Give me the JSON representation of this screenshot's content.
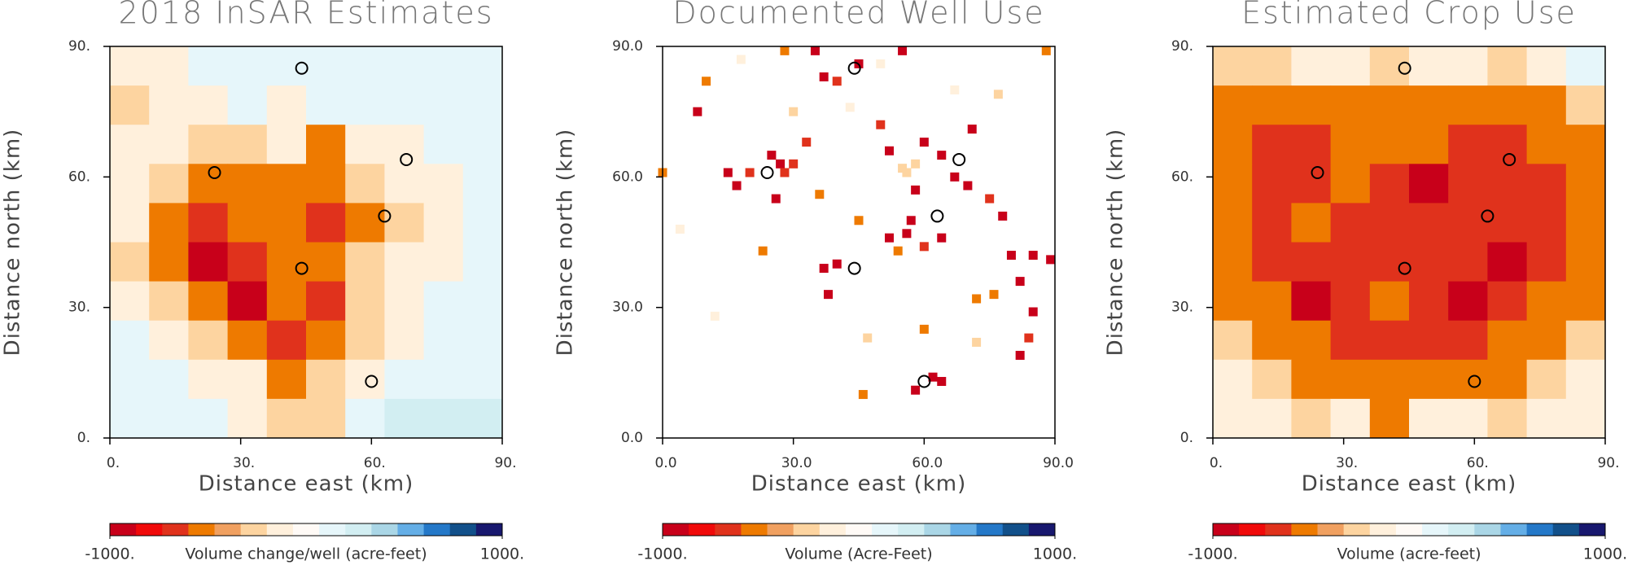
{
  "chart_data": [
    {
      "type": "heatmap",
      "title": "2018 InSAR Estimates",
      "xlabel": "Distance east (km)",
      "ylabel": "Distance north (km)",
      "xlim": [
        0,
        90
      ],
      "ylim": [
        0,
        90
      ],
      "xticks": [
        {
          "value": 0,
          "label": "0."
        },
        {
          "value": 30,
          "label": "30."
        },
        {
          "value": 60,
          "label": "60."
        },
        {
          "value": 90,
          "label": "90."
        }
      ],
      "yticks": [
        {
          "value": 0,
          "label": "0."
        },
        {
          "value": 30,
          "label": "30."
        },
        {
          "value": 60,
          "label": "60."
        },
        {
          "value": 90,
          "label": "90."
        }
      ],
      "z": [
        [
          -200,
          -200,
          130,
          130,
          130,
          130,
          130,
          130,
          130,
          130
        ],
        [
          -330,
          -200,
          -200,
          130,
          -200,
          130,
          130,
          130,
          130,
          130
        ],
        [
          -200,
          -200,
          -330,
          -330,
          -200,
          -470,
          -200,
          -200,
          130,
          130
        ],
        [
          -200,
          -330,
          -470,
          -470,
          -600,
          -470,
          -330,
          -200,
          -200,
          130
        ],
        [
          -200,
          -470,
          -730,
          -600,
          -470,
          -730,
          -470,
          -330,
          -200,
          130
        ],
        [
          -330,
          -470,
          -870,
          -730,
          -600,
          -470,
          -330,
          -200,
          -200,
          130
        ],
        [
          -200,
          -330,
          -600,
          -870,
          -470,
          -730,
          -330,
          -200,
          130,
          130
        ],
        [
          130,
          -200,
          -330,
          -470,
          -730,
          -600,
          -330,
          -200,
          130,
          130
        ],
        [
          130,
          130,
          -200,
          -200,
          -470,
          -330,
          -200,
          130,
          130,
          130
        ],
        [
          130,
          130,
          130,
          -200,
          -330,
          -330,
          130,
          210,
          210,
          210
        ]
      ],
      "wells": {
        "x": [
          44,
          24,
          68,
          63,
          44,
          60
        ],
        "y": [
          85,
          61,
          64,
          51,
          39,
          13
        ]
      },
      "colorbar": {
        "label": "Volume change/well (acre-feet)",
        "lim": [
          -1000,
          1000
        ],
        "ticks": [
          {
            "value": -1000,
            "label": "-1000."
          },
          {
            "value": 1000,
            "label": "1000."
          }
        ],
        "colors": [
          "#c8001a",
          "#f00a0a",
          "#e0321c",
          "#ee7a00",
          "#f0a060",
          "#fdd4a0",
          "#fff0dc",
          "#fffaf6",
          "#e6f6fa",
          "#d2eef2",
          "#aad6e6",
          "#64aee6",
          "#2478c8",
          "#12508a",
          "#18186e"
        ]
      }
    },
    {
      "type": "scatter",
      "title": "Documented Well Use",
      "xlabel": "Distance east (km)",
      "ylabel": "Distance north (km)",
      "xlim": [
        0,
        90
      ],
      "ylim": [
        0,
        90
      ],
      "xticks": [
        {
          "value": 0,
          "label": "0.0"
        },
        {
          "value": 30,
          "label": "30.0"
        },
        {
          "value": 60,
          "label": "60.0"
        },
        {
          "value": 90,
          "label": "90.0"
        }
      ],
      "yticks": [
        {
          "value": 0,
          "label": "0.0"
        },
        {
          "value": 30,
          "label": "30.0"
        },
        {
          "value": 60,
          "label": "60.0"
        },
        {
          "value": 90,
          "label": "90.0"
        }
      ],
      "series": [
        {
          "x": [
            0,
            10,
            8,
            15,
            17,
            20,
            27,
            28,
            25,
            30,
            26,
            33,
            35,
            37,
            40,
            45,
            55,
            50,
            52,
            55,
            58,
            56,
            60,
            64,
            67,
            70,
            71,
            58,
            57,
            56,
            52,
            60,
            64,
            75,
            78,
            80,
            85,
            89,
            82,
            85,
            84,
            82,
            37,
            38,
            40,
            60,
            62,
            64,
            58,
            46,
            45,
            54,
            72,
            76,
            47,
            72,
            23,
            36,
            18,
            4,
            12,
            67,
            43,
            30,
            77,
            50,
            88,
            28
          ],
          "y": [
            61,
            82,
            75,
            61,
            58,
            61,
            63,
            61,
            65,
            63,
            55,
            68,
            89,
            83,
            82,
            86,
            89,
            72,
            66,
            62,
            63,
            61,
            68,
            65,
            60,
            58,
            71,
            57,
            50,
            47,
            46,
            44,
            46,
            55,
            51,
            42,
            42,
            41,
            36,
            29,
            23,
            19,
            39,
            33,
            40,
            25,
            14,
            13,
            11,
            10,
            50,
            43,
            32,
            33,
            23,
            22,
            43,
            56,
            87,
            48,
            28,
            80,
            76,
            75,
            79,
            86,
            89,
            89
          ],
          "values": [
            -600,
            -470,
            -870,
            -870,
            -870,
            -730,
            -870,
            -730,
            -870,
            -730,
            -870,
            -730,
            -870,
            -870,
            -730,
            -870,
            -870,
            -730,
            -870,
            -330,
            -330,
            -330,
            -870,
            -870,
            -870,
            -870,
            -870,
            -870,
            -870,
            -870,
            -870,
            -730,
            -870,
            -730,
            -870,
            -870,
            -870,
            -870,
            -870,
            -870,
            -730,
            -870,
            -870,
            -870,
            -870,
            -470,
            -870,
            -870,
            -870,
            -600,
            -470,
            -600,
            -600,
            -600,
            -330,
            -330,
            -600,
            -600,
            -200,
            -200,
            -200,
            -200,
            -200,
            -330,
            -330,
            -200,
            -600,
            -470
          ]
        }
      ],
      "wells": {
        "x": [
          44,
          24,
          68,
          63,
          44,
          60
        ],
        "y": [
          85,
          61,
          64,
          51,
          39,
          13
        ]
      },
      "colorbar": {
        "label": "Volume (Acre-Feet)",
        "lim": [
          -1000,
          1000
        ],
        "ticks": [
          {
            "value": -1000,
            "label": "-1000."
          },
          {
            "value": 1000,
            "label": "1000."
          }
        ],
        "colors": [
          "#c8001a",
          "#f00a0a",
          "#e0321c",
          "#ee7a00",
          "#f0a060",
          "#fdd4a0",
          "#fff0dc",
          "#fffaf6",
          "#e6f6fa",
          "#d2eef2",
          "#aad6e6",
          "#64aee6",
          "#2478c8",
          "#12508a",
          "#18186e"
        ]
      }
    },
    {
      "type": "heatmap",
      "title": "Estimated Crop Use",
      "xlabel": "Distance east (km)",
      "ylabel": "Distance north (km)",
      "xlim": [
        0,
        90
      ],
      "ylim": [
        0,
        90
      ],
      "xticks": [
        {
          "value": 0,
          "label": "0."
        },
        {
          "value": 30,
          "label": "30."
        },
        {
          "value": 60,
          "label": "60."
        },
        {
          "value": 90,
          "label": "90."
        }
      ],
      "yticks": [
        {
          "value": 0,
          "label": "0."
        },
        {
          "value": 30,
          "label": "30."
        },
        {
          "value": 60,
          "label": "60."
        },
        {
          "value": 90,
          "label": "90."
        }
      ],
      "z": [
        [
          -330,
          -330,
          -200,
          -200,
          -330,
          -200,
          -200,
          -330,
          -200,
          130
        ],
        [
          -470,
          -600,
          -600,
          -470,
          -470,
          -470,
          -600,
          -600,
          -470,
          -330
        ],
        [
          -600,
          -730,
          -730,
          -600,
          -600,
          -600,
          -730,
          -730,
          -600,
          -470
        ],
        [
          -600,
          -730,
          -730,
          -600,
          -730,
          -870,
          -730,
          -730,
          -730,
          -470
        ],
        [
          -600,
          -730,
          -600,
          -730,
          -730,
          -730,
          -730,
          -730,
          -730,
          -470
        ],
        [
          -600,
          -730,
          -730,
          -730,
          -730,
          -730,
          -730,
          -870,
          -730,
          -470
        ],
        [
          -470,
          -600,
          -870,
          -730,
          -600,
          -730,
          -870,
          -730,
          -600,
          -470
        ],
        [
          -330,
          -470,
          -600,
          -730,
          -730,
          -730,
          -730,
          -600,
          -470,
          -330
        ],
        [
          -200,
          -330,
          -470,
          -470,
          -600,
          -470,
          -470,
          -470,
          -330,
          -200
        ],
        [
          -200,
          -200,
          -330,
          -200,
          -470,
          -200,
          -200,
          -330,
          -200,
          -200
        ]
      ],
      "wells": {
        "x": [
          44,
          24,
          68,
          63,
          44,
          60
        ],
        "y": [
          85,
          61,
          64,
          51,
          39,
          13
        ]
      },
      "colorbar": {
        "label": "Volume (acre-feet)",
        "lim": [
          -1000,
          1000
        ],
        "ticks": [
          {
            "value": -1000,
            "label": "-1000."
          },
          {
            "value": 1000,
            "label": "1000."
          }
        ],
        "colors": [
          "#c8001a",
          "#f00a0a",
          "#e0321c",
          "#ee7a00",
          "#f0a060",
          "#fdd4a0",
          "#fff0dc",
          "#fffaf6",
          "#e6f6fa",
          "#d2eef2",
          "#aad6e6",
          "#64aee6",
          "#2478c8",
          "#12508a",
          "#18186e"
        ]
      }
    }
  ]
}
